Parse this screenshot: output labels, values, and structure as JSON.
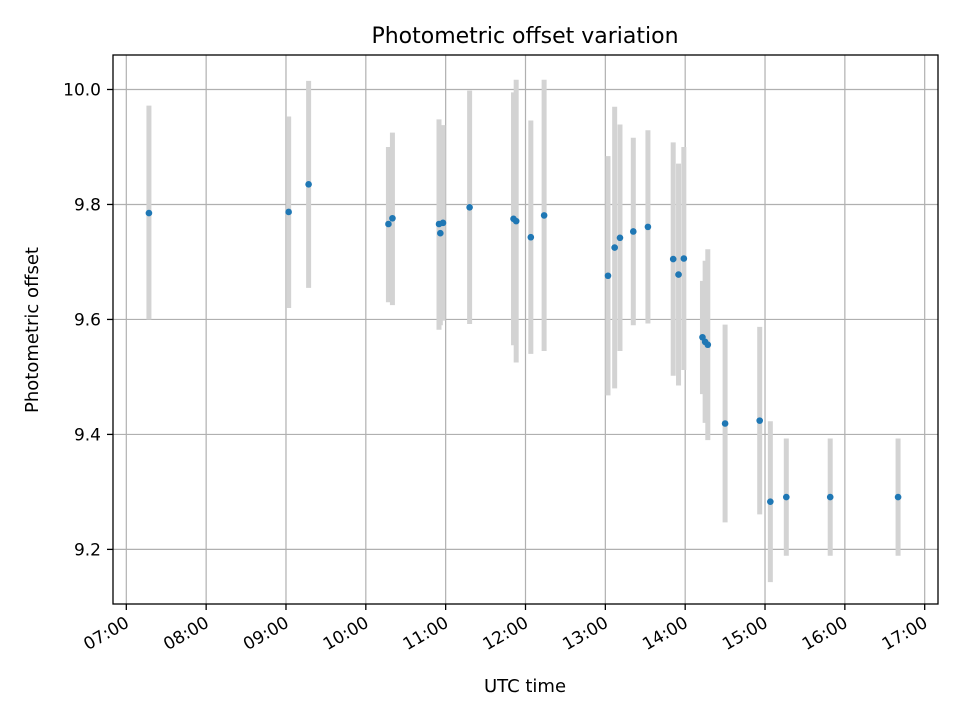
{
  "chart_data": {
    "type": "scatter",
    "title": "Photometric offset variation",
    "xlabel": "UTC time",
    "ylabel": "Photometric offset",
    "xlim": [
      "06:50",
      "17:10"
    ],
    "ylim": [
      9.105,
      10.06
    ],
    "x_ticks": [
      "07:00",
      "08:00",
      "09:00",
      "10:00",
      "11:00",
      "12:00",
      "13:00",
      "14:00",
      "15:00",
      "16:00",
      "17:00"
    ],
    "y_ticks": [
      "9.2",
      "9.4",
      "9.6",
      "9.8",
      "10.0"
    ],
    "grid": true,
    "colors": {
      "points": "#1f77b4",
      "error_bars": "#d3d3d3",
      "grid": "#b0b0b0"
    },
    "points": [
      {
        "x": "07:17",
        "y": 9.785,
        "err_low": 9.6,
        "err_high": 9.972
      },
      {
        "x": "09:02",
        "y": 9.787,
        "err_low": 9.62,
        "err_high": 9.953
      },
      {
        "x": "09:17",
        "y": 9.835,
        "err_low": 9.655,
        "err_high": 10.015
      },
      {
        "x": "10:17",
        "y": 9.766,
        "err_low": 9.63,
        "err_high": 9.9
      },
      {
        "x": "10:20",
        "y": 9.776,
        "err_low": 9.625,
        "err_high": 9.925
      },
      {
        "x": "10:55",
        "y": 9.766,
        "err_low": 9.582,
        "err_high": 9.948
      },
      {
        "x": "10:56",
        "y": 9.75,
        "err_low": 9.59,
        "err_high": 9.91
      },
      {
        "x": "10:58",
        "y": 9.768,
        "err_low": 9.598,
        "err_high": 9.938
      },
      {
        "x": "11:18",
        "y": 9.795,
        "err_low": 9.592,
        "err_high": 9.998
      },
      {
        "x": "11:51",
        "y": 9.775,
        "err_low": 9.555,
        "err_high": 9.995
      },
      {
        "x": "11:53",
        "y": 9.771,
        "err_low": 9.525,
        "err_high": 10.017
      },
      {
        "x": "12:04",
        "y": 9.743,
        "err_low": 9.54,
        "err_high": 9.946
      },
      {
        "x": "12:14",
        "y": 9.781,
        "err_low": 9.545,
        "err_high": 10.017
      },
      {
        "x": "13:02",
        "y": 9.676,
        "err_low": 9.468,
        "err_high": 9.884
      },
      {
        "x": "13:07",
        "y": 9.725,
        "err_low": 9.48,
        "err_high": 9.97
      },
      {
        "x": "13:11",
        "y": 9.742,
        "err_low": 9.545,
        "err_high": 9.939
      },
      {
        "x": "13:21",
        "y": 9.753,
        "err_low": 9.59,
        "err_high": 9.916
      },
      {
        "x": "13:32",
        "y": 9.761,
        "err_low": 9.593,
        "err_high": 9.929
      },
      {
        "x": "13:51",
        "y": 9.705,
        "err_low": 9.502,
        "err_high": 9.908
      },
      {
        "x": "13:55",
        "y": 9.678,
        "err_low": 9.485,
        "err_high": 9.871
      },
      {
        "x": "13:59",
        "y": 9.706,
        "err_low": 9.512,
        "err_high": 9.9
      },
      {
        "x": "14:13",
        "y": 9.569,
        "err_low": 9.47,
        "err_high": 9.667
      },
      {
        "x": "14:15",
        "y": 9.561,
        "err_low": 9.42,
        "err_high": 9.702
      },
      {
        "x": "14:17",
        "y": 9.556,
        "err_low": 9.39,
        "err_high": 9.722
      },
      {
        "x": "14:30",
        "y": 9.419,
        "err_low": 9.247,
        "err_high": 9.591
      },
      {
        "x": "14:56",
        "y": 9.424,
        "err_low": 9.261,
        "err_high": 9.587
      },
      {
        "x": "15:04",
        "y": 9.283,
        "err_low": 9.143,
        "err_high": 9.423
      },
      {
        "x": "15:16",
        "y": 9.291,
        "err_low": 9.189,
        "err_high": 9.393
      },
      {
        "x": "15:49",
        "y": 9.291,
        "err_low": 9.189,
        "err_high": 9.393
      },
      {
        "x": "16:40",
        "y": 9.291,
        "err_low": 9.189,
        "err_high": 9.393
      }
    ]
  }
}
